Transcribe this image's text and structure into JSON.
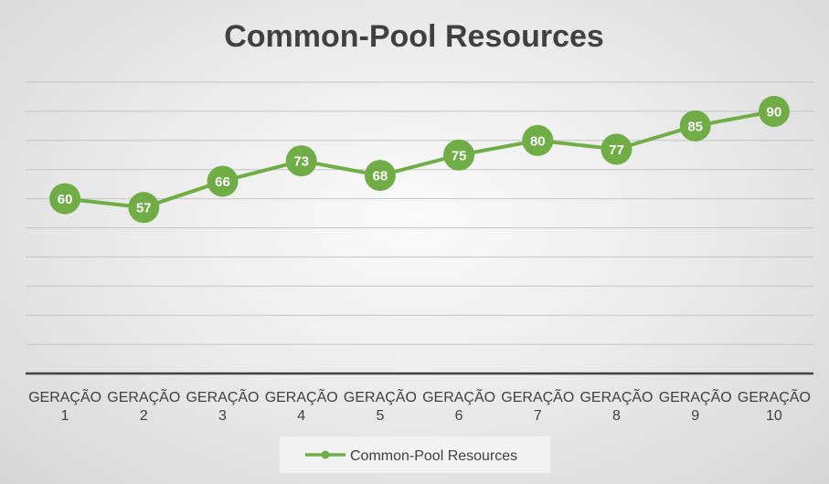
{
  "chart_data": {
    "type": "line",
    "title": "Common-Pool Resources",
    "categories": [
      [
        "GERAÇÃO",
        "1"
      ],
      [
        "GERAÇÃO",
        "2"
      ],
      [
        "GERAÇÃO",
        "3"
      ],
      [
        "GERAÇÃO",
        "4"
      ],
      [
        "GERAÇÃO",
        "5"
      ],
      [
        "GERAÇÃO",
        "6"
      ],
      [
        "GERAÇÃO",
        "7"
      ],
      [
        "GERAÇÃO",
        "8"
      ],
      [
        "GERAÇÃO",
        "9"
      ],
      [
        "GERAÇÃO",
        "10"
      ]
    ],
    "series": [
      {
        "name": "Common-Pool Resources",
        "values": [
          60,
          57,
          66,
          73,
          68,
          75,
          80,
          77,
          85,
          90
        ],
        "color": "#70ad47"
      }
    ],
    "ylim": [
      0,
      100
    ],
    "y_grid_step": 10,
    "grid": true,
    "y_axis_labels_shown": false,
    "data_labels": true,
    "legend_position": "bottom"
  }
}
